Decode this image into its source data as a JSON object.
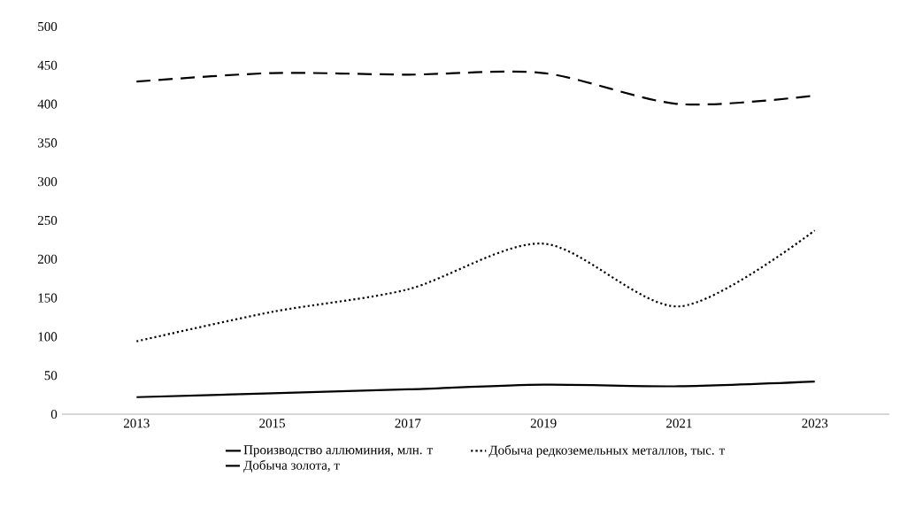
{
  "chart_data": {
    "type": "line",
    "categories": [
      "2013",
      "2015",
      "2017",
      "2019",
      "2021",
      "2023"
    ],
    "series": [
      {
        "name": "Производство аллюминия, млн. т",
        "color": "#000000",
        "line_style": "solid",
        "values": [
          22,
          27,
          32,
          38,
          36,
          42
        ]
      },
      {
        "name": "Добыча редкоземельных металлов, тыс. т",
        "color": "#000000",
        "line_style": "dotted",
        "values": [
          94,
          132,
          161,
          220,
          139,
          237
        ]
      },
      {
        "name": "Добыча золота, т",
        "color": "#000000",
        "line_style": "dashed",
        "values": [
          429,
          440,
          438,
          440,
          400,
          411
        ]
      }
    ],
    "ylim": [
      0,
      500
    ],
    "yticks": [
      0,
      50,
      100,
      150,
      200,
      250,
      300,
      350,
      400,
      450,
      500
    ],
    "grid": false,
    "legend": "bottom"
  }
}
